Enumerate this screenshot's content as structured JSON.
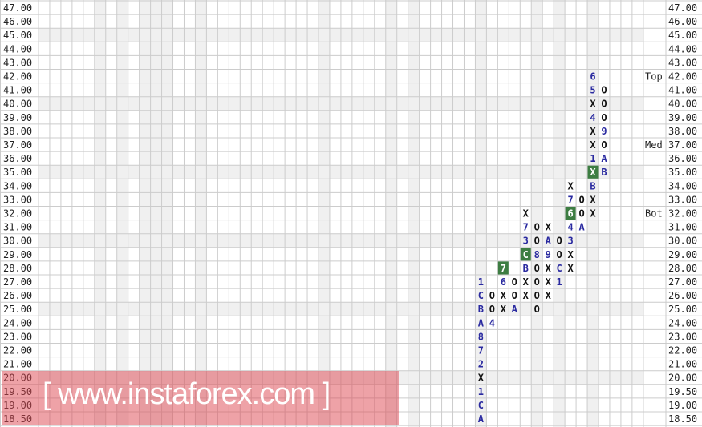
{
  "chart_data": {
    "type": "point-and-figure",
    "price_levels": [
      "47.00",
      "46.00",
      "45.00",
      "44.00",
      "43.00",
      "42.00",
      "41.00",
      "40.00",
      "39.00",
      "38.00",
      "37.00",
      "36.00",
      "35.00",
      "34.00",
      "33.00",
      "32.00",
      "31.00",
      "30.00",
      "29.00",
      "28.00",
      "27.00",
      "26.00",
      "25.00",
      "24.00",
      "23.00",
      "22.00",
      "21.00",
      "20.00",
      "19.50",
      "19.00",
      "18.50"
    ],
    "side_markers": [
      {
        "label": "Top",
        "price": "42.00"
      },
      {
        "label": "Med",
        "price": "37.00"
      },
      {
        "label": "Bot",
        "price": "32.00"
      }
    ],
    "columns": [
      {
        "cells": {
          "27.00": "1",
          "26.00": "C",
          "25.00": "B",
          "24.00": "A",
          "23.00": "8",
          "22.00": "7",
          "21.00": "2",
          "20.00": "X",
          "19.50": "1",
          "19.00": "C",
          "18.50": "A"
        }
      },
      {
        "cells": {
          "26.00": "O",
          "25.00": "O",
          "24.00": "4"
        }
      },
      {
        "cells": {
          "28.00": "7",
          "27.00": "6",
          "26.00": "X",
          "25.00": "X"
        },
        "highlight": [
          "28.00"
        ]
      },
      {
        "cells": {
          "27.00": "O",
          "26.00": "O",
          "25.00": "A"
        }
      },
      {
        "cells": {
          "32.00": "X",
          "31.00": "7",
          "30.00": "3",
          "29.00": "C",
          "28.00": "B",
          "27.00": "X",
          "26.00": "X"
        },
        "highlight": [
          "29.00"
        ]
      },
      {
        "cells": {
          "31.00": "O",
          "30.00": "O",
          "29.00": "8",
          "28.00": "O",
          "27.00": "O",
          "26.00": "O",
          "25.00": "O"
        }
      },
      {
        "cells": {
          "31.00": "X",
          "30.00": "A",
          "29.00": "9",
          "28.00": "X",
          "27.00": "X",
          "26.00": "X"
        }
      },
      {
        "cells": {
          "30.00": "O",
          "29.00": "O",
          "28.00": "C",
          "27.00": "1"
        }
      },
      {
        "cells": {
          "34.00": "X",
          "33.00": "7",
          "32.00": "6",
          "31.00": "4",
          "30.00": "3",
          "29.00": "X",
          "28.00": "X"
        },
        "highlight": [
          "32.00"
        ]
      },
      {
        "cells": {
          "33.00": "O",
          "32.00": "O",
          "31.00": "A"
        }
      },
      {
        "cells": {
          "42.00": "6",
          "41.00": "5",
          "40.00": "X",
          "39.00": "4",
          "38.00": "X",
          "37.00": "X",
          "36.00": "1",
          "35.00": "X",
          "34.00": "B",
          "33.00": "X",
          "32.00": "X"
        },
        "highlight": [
          "35.00"
        ]
      },
      {
        "cells": {
          "41.00": "O",
          "40.00": "O",
          "39.00": "O",
          "38.00": "9",
          "37.00": "O",
          "36.00": "A",
          "35.00": "B"
        }
      }
    ],
    "colors": {
      "x_o": "#111111",
      "month_code": "#2a2aa0",
      "highlight": "#3d7d42",
      "grid": "#cccccc",
      "shade": "#f0f0f0"
    },
    "grid": true
  },
  "watermark": {
    "text": "www.instaforex.com",
    "left_bracket": "[",
    "right_bracket": "]"
  }
}
